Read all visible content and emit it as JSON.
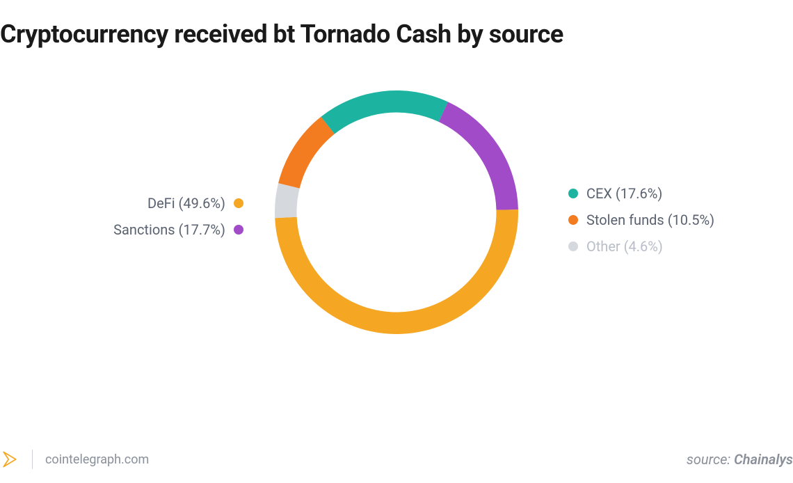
{
  "title": "Cryptocurrency received bt Tornado Cash by source",
  "chart": {
    "type": "donut",
    "inner_radius_ratio": 0.82,
    "outer_radius": 175,
    "background_color": "#ffffff",
    "start_angle_deg": -65,
    "slices": [
      {
        "key": "sanctions",
        "label": "Sanctions",
        "value": 17.7,
        "display": "Sanctions (17.7%)",
        "color": "#a24bc8",
        "side": "left",
        "muted": false
      },
      {
        "key": "defi",
        "label": "DeFi",
        "value": 49.6,
        "display": "DeFi (49.6%)",
        "color": "#f5a623",
        "side": "left",
        "muted": false
      },
      {
        "key": "other",
        "label": "Other",
        "value": 4.6,
        "display": "Other (4.6%)",
        "color": "#d5d9de",
        "side": "right",
        "muted": true
      },
      {
        "key": "stolen_funds",
        "label": "Stolen funds",
        "value": 10.5,
        "display": "Stolen funds (10.5%)",
        "color": "#f47c20",
        "side": "right",
        "muted": false
      },
      {
        "key": "cex",
        "label": "CEX",
        "value": 17.6,
        "display": "CEX (17.6%)",
        "color": "#1cb3a0",
        "side": "right",
        "muted": false
      }
    ]
  },
  "legend_left_order": [
    "defi",
    "sanctions"
  ],
  "legend_right_order": [
    "cex",
    "stolen_funds",
    "other"
  ],
  "footer": {
    "site": "cointelegraph.com",
    "source_prefix": "source: ",
    "source_name": "Chainalys",
    "brand_icon_color": "#f5a623"
  },
  "typography": {
    "title_fontsize": 36,
    "title_color": "#1a1a1a",
    "legend_fontsize": 20,
    "legend_color": "#5a6270",
    "legend_muted_color": "#b8bec8",
    "footer_fontsize": 18,
    "footer_color": "#8a9099"
  }
}
